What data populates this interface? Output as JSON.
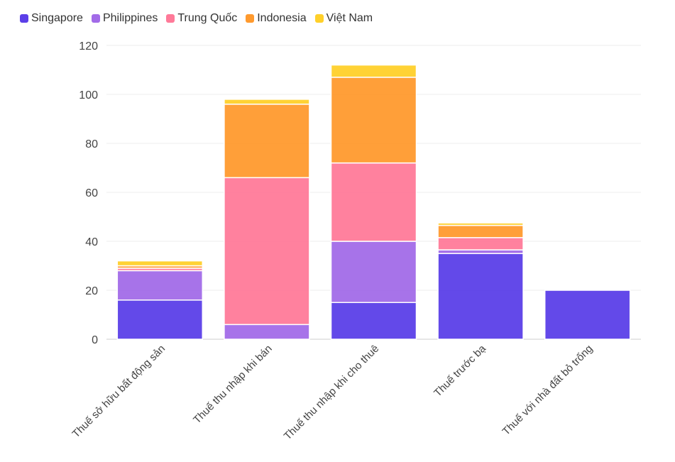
{
  "chart_data": {
    "type": "bar",
    "stacked": true,
    "categories": [
      "Thuế sở hữu bất động sản",
      "Thuế thu nhập khi bán",
      "Thuế thu nhập khi cho thuê",
      "Thuế trước bạ",
      "Thuế với nhà đất bỏ trống"
    ],
    "series": [
      {
        "name": "Singapore",
        "color": "#5b3fe8",
        "values": [
          16,
          0,
          15,
          35,
          20
        ]
      },
      {
        "name": "Philippines",
        "color": "#a26be8",
        "values": [
          12,
          6,
          25,
          1.5,
          0
        ]
      },
      {
        "name": "Trung Quốc",
        "color": "#ff7a99",
        "values": [
          1,
          60,
          32,
          5,
          0
        ]
      },
      {
        "name": "Indonesia",
        "color": "#ff9a2e",
        "values": [
          1,
          30,
          35,
          5,
          0
        ]
      },
      {
        "name": "Việt Nam",
        "color": "#ffd02a",
        "values": [
          2,
          2,
          5,
          1,
          0
        ]
      }
    ],
    "ylim": [
      0,
      120
    ],
    "yticks": [
      0,
      20,
      40,
      60,
      80,
      100,
      120
    ],
    "grid": true,
    "legend_position": "top-left",
    "title": "",
    "xlabel": "",
    "ylabel": ""
  }
}
